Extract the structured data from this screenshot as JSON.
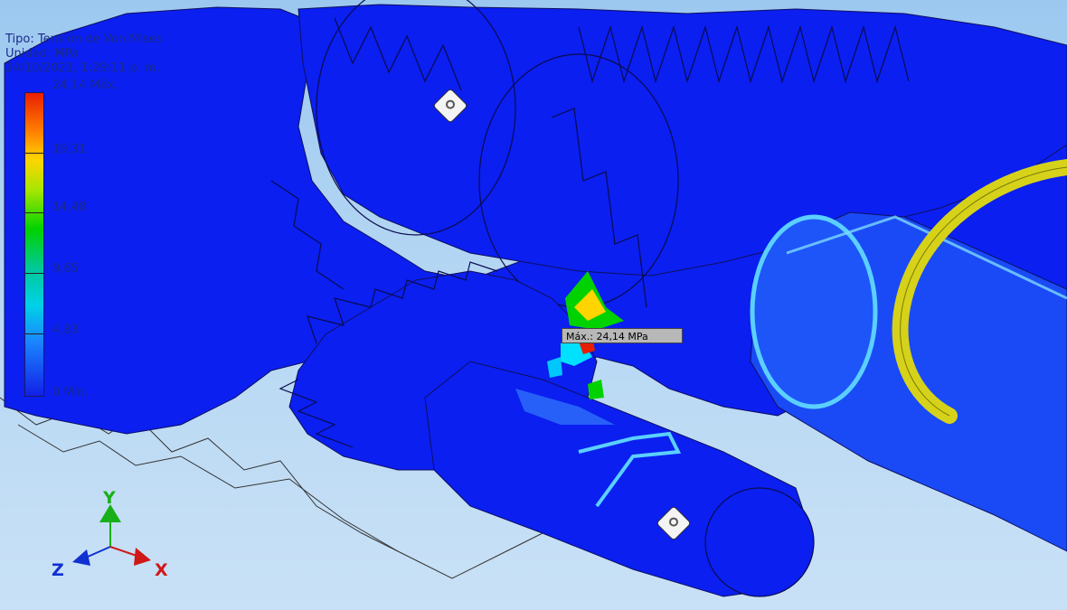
{
  "result_header": {
    "type_line": "Tipo: Tensión de Von Mises",
    "unit_line": "Unidad: MPa",
    "date_line": "24/10/2023, 1:29:11 p. m."
  },
  "legend": {
    "max_label": "24,14 Máx.",
    "ticks": [
      "19,31",
      "14,48",
      "9,65",
      "4,83"
    ],
    "min_label": "0 Mín.",
    "colors": [
      "#e81e00",
      "#ff7a00",
      "#ffd400",
      "#00d200",
      "#00d2e6",
      "#1a86ff",
      "#1220e6"
    ]
  },
  "probe": {
    "max_tag": "Máx.: 24,14 MPa"
  },
  "triad": {
    "y": "Y",
    "z": "Z",
    "x": "X"
  },
  "colors": {
    "part_blue": "#0a1ff0",
    "background_top": "#9cc8f0",
    "ring_yellow": "#d6d21a",
    "axis_y": "#18b018",
    "axis_z": "#1030d0",
    "axis_x": "#d01818"
  }
}
